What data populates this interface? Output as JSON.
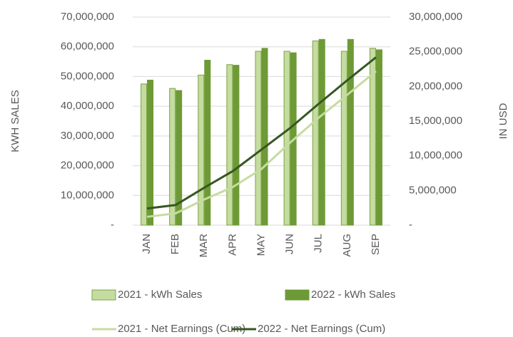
{
  "chart_data": {
    "type": "bar_line",
    "categories": [
      "JAN",
      "FEB",
      "MAR",
      "APR",
      "MAY",
      "JUN",
      "JUL",
      "AUG",
      "SEP"
    ],
    "y_label": "KWH SALES",
    "y2_label": "IN USD",
    "series": [
      {
        "name": "2021 - kWh Sales",
        "type": "bar",
        "color": "#c5dca0",
        "values": [
          47500000,
          46000000,
          50500000,
          54000000,
          58500000,
          58500000,
          62000000,
          58500000,
          59500000
        ]
      },
      {
        "name": "2022 - kWh Sales",
        "type": "bar",
        "color": "#6e9a36",
        "values": [
          48800000,
          45300000,
          55500000,
          53800000,
          59500000,
          58000000,
          62500000,
          62500000,
          59000000
        ]
      },
      {
        "name": "2021 - Net Earnings (Cum)",
        "type": "line",
        "axis": "y2",
        "color": "#c5dca0",
        "values": [
          1200000,
          1700000,
          3700000,
          5500000,
          8100000,
          11900000,
          15500000,
          18800000,
          22200000
        ]
      },
      {
        "name": "2022 - Net Earnings (Cum)",
        "type": "line",
        "axis": "y2",
        "color": "#375623",
        "values": [
          2400000,
          2900000,
          5400000,
          7800000,
          10900000,
          14000000,
          17500000,
          20900000,
          24200000
        ]
      }
    ],
    "ylim": [
      0,
      70000000
    ],
    "yticks": [
      {
        "value": 0,
        "label": "-"
      },
      {
        "value": 10000000,
        "label": "10,000,000"
      },
      {
        "value": 20000000,
        "label": "20,000,000"
      },
      {
        "value": 30000000,
        "label": "30,000,000"
      },
      {
        "value": 40000000,
        "label": "40,000,000"
      },
      {
        "value": 50000000,
        "label": "50,000,000"
      },
      {
        "value": 60000000,
        "label": "60,000,000"
      },
      {
        "value": 70000000,
        "label": "70,000,000"
      }
    ],
    "y2lim": [
      0,
      30000000
    ],
    "y2ticks": [
      {
        "value": 0,
        "label": "-"
      },
      {
        "value": 5000000,
        "label": "5,000,000"
      },
      {
        "value": 10000000,
        "label": "10,000,000"
      },
      {
        "value": 15000000,
        "label": "15,000,000"
      },
      {
        "value": 20000000,
        "label": "20,000,000"
      },
      {
        "value": 25000000,
        "label": "25,000,000"
      },
      {
        "value": 30000000,
        "label": "30,000,000"
      }
    ],
    "grid": true
  }
}
